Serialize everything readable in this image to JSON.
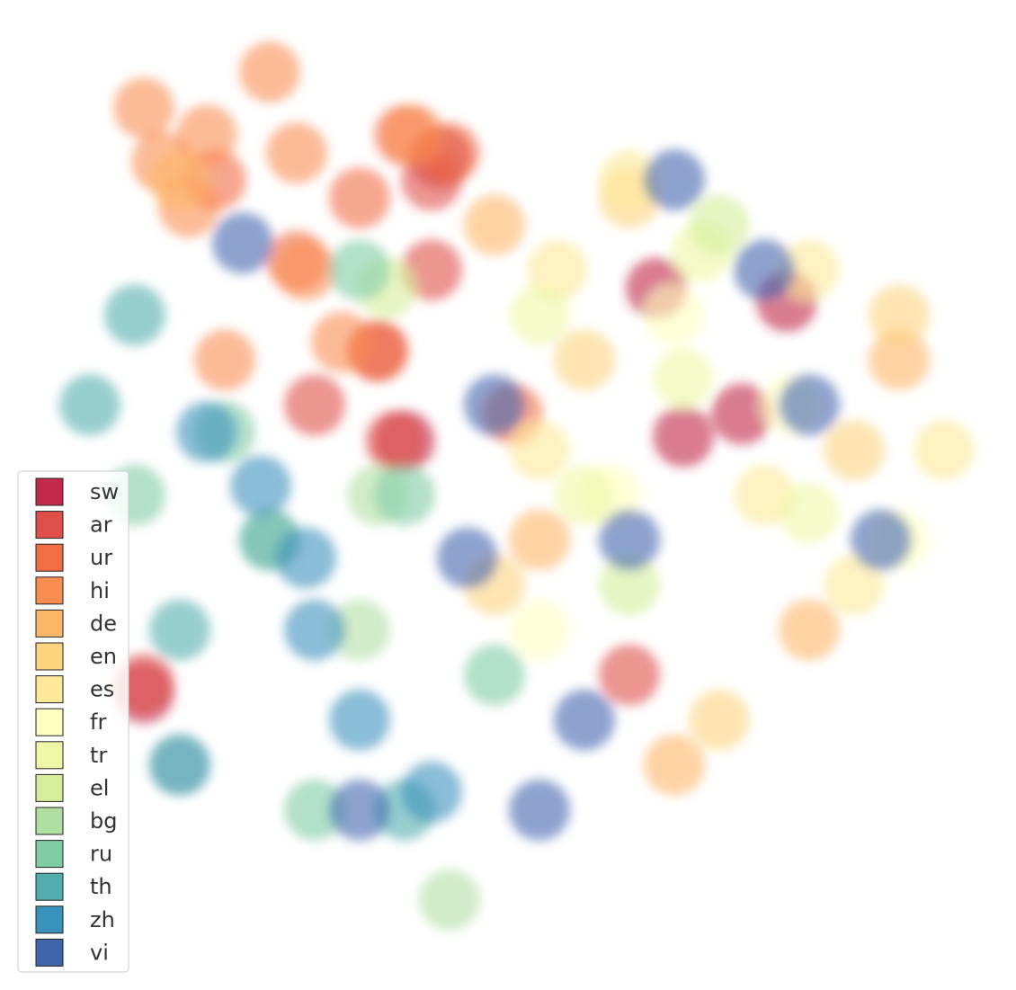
{
  "chart_data": {
    "type": "scatter",
    "xlim": [
      0,
      113
    ],
    "ylim": [
      0,
      110
    ],
    "series": [
      {
        "name": "sw",
        "color": "#c2294a",
        "x": [
          73,
          87.5,
          82.5,
          76,
          49,
          45,
          16
        ],
        "y": [
          78,
          76.5,
          64,
          61.5,
          92.5,
          61,
          33
        ]
      },
      {
        "name": "ar",
        "color": "#e04f4a",
        "x": [
          48,
          44,
          42,
          16,
          35,
          70,
          48
        ],
        "y": [
          90,
          61,
          71,
          34,
          65,
          35,
          80
        ]
      },
      {
        "name": "ur",
        "color": "#f26d43",
        "x": [
          50,
          40,
          33,
          42,
          57,
          24,
          45
        ],
        "y": [
          93,
          88,
          81,
          71,
          64,
          90,
          95
        ]
      },
      {
        "name": "hi",
        "color": "#fa8e52",
        "x": [
          23,
          30,
          16,
          46,
          34,
          21,
          38,
          25,
          18,
          33
        ],
        "y": [
          95,
          102,
          98,
          95,
          80,
          87,
          72,
          70,
          92,
          93
        ]
      },
      {
        "name": "de",
        "color": "#fdb567",
        "x": [
          60,
          90,
          55,
          20,
          75,
          100
        ],
        "y": [
          50,
          40,
          85,
          90,
          25,
          70
        ]
      },
      {
        "name": "en",
        "color": "#fed481",
        "x": [
          65,
          95,
          80,
          55,
          100,
          70
        ],
        "y": [
          70,
          60,
          30,
          45,
          75,
          88
        ]
      },
      {
        "name": "es",
        "color": "#fee99a",
        "x": [
          70,
          85,
          60,
          95,
          105,
          62,
          90
        ],
        "y": [
          90,
          55,
          60,
          45,
          60,
          80,
          80
        ]
      },
      {
        "name": "fr",
        "color": "#ffffbf",
        "x": [
          75,
          60,
          88,
          68,
          100
        ],
        "y": [
          75,
          40,
          65,
          55,
          50
        ]
      },
      {
        "name": "tr",
        "color": "#eef8a6",
        "x": [
          76,
          60,
          90,
          65,
          78
        ],
        "y": [
          68,
          75,
          53,
          55,
          82
        ]
      },
      {
        "name": "el",
        "color": "#d6ee9b",
        "x": [
          43,
          80,
          70
        ],
        "y": [
          78,
          85,
          45
        ]
      },
      {
        "name": "bg",
        "color": "#b1dfa3",
        "x": [
          42,
          20,
          40,
          50,
          30
        ],
        "y": [
          55,
          25,
          40,
          10,
          50
        ]
      },
      {
        "name": "ru",
        "color": "#80cca5",
        "x": [
          40,
          45,
          25,
          55,
          15,
          35
        ],
        "y": [
          80,
          55,
          62,
          35,
          55,
          20
        ]
      },
      {
        "name": "th",
        "color": "#54aead",
        "x": [
          10,
          20,
          45,
          30,
          15
        ],
        "y": [
          65,
          40,
          20,
          50,
          75
        ]
      },
      {
        "name": "zh",
        "color": "#3a91bb",
        "x": [
          29,
          35,
          40,
          23,
          20,
          48,
          34
        ],
        "y": [
          56,
          40,
          30,
          62,
          25,
          22,
          48
        ]
      },
      {
        "name": "vi",
        "color": "#4065ad",
        "x": [
          27,
          65,
          70,
          90,
          85,
          55,
          60,
          98,
          40,
          52,
          75
        ],
        "y": [
          83,
          30,
          50,
          65,
          80,
          65,
          20,
          50,
          20,
          48,
          90
        ]
      }
    ]
  }
}
